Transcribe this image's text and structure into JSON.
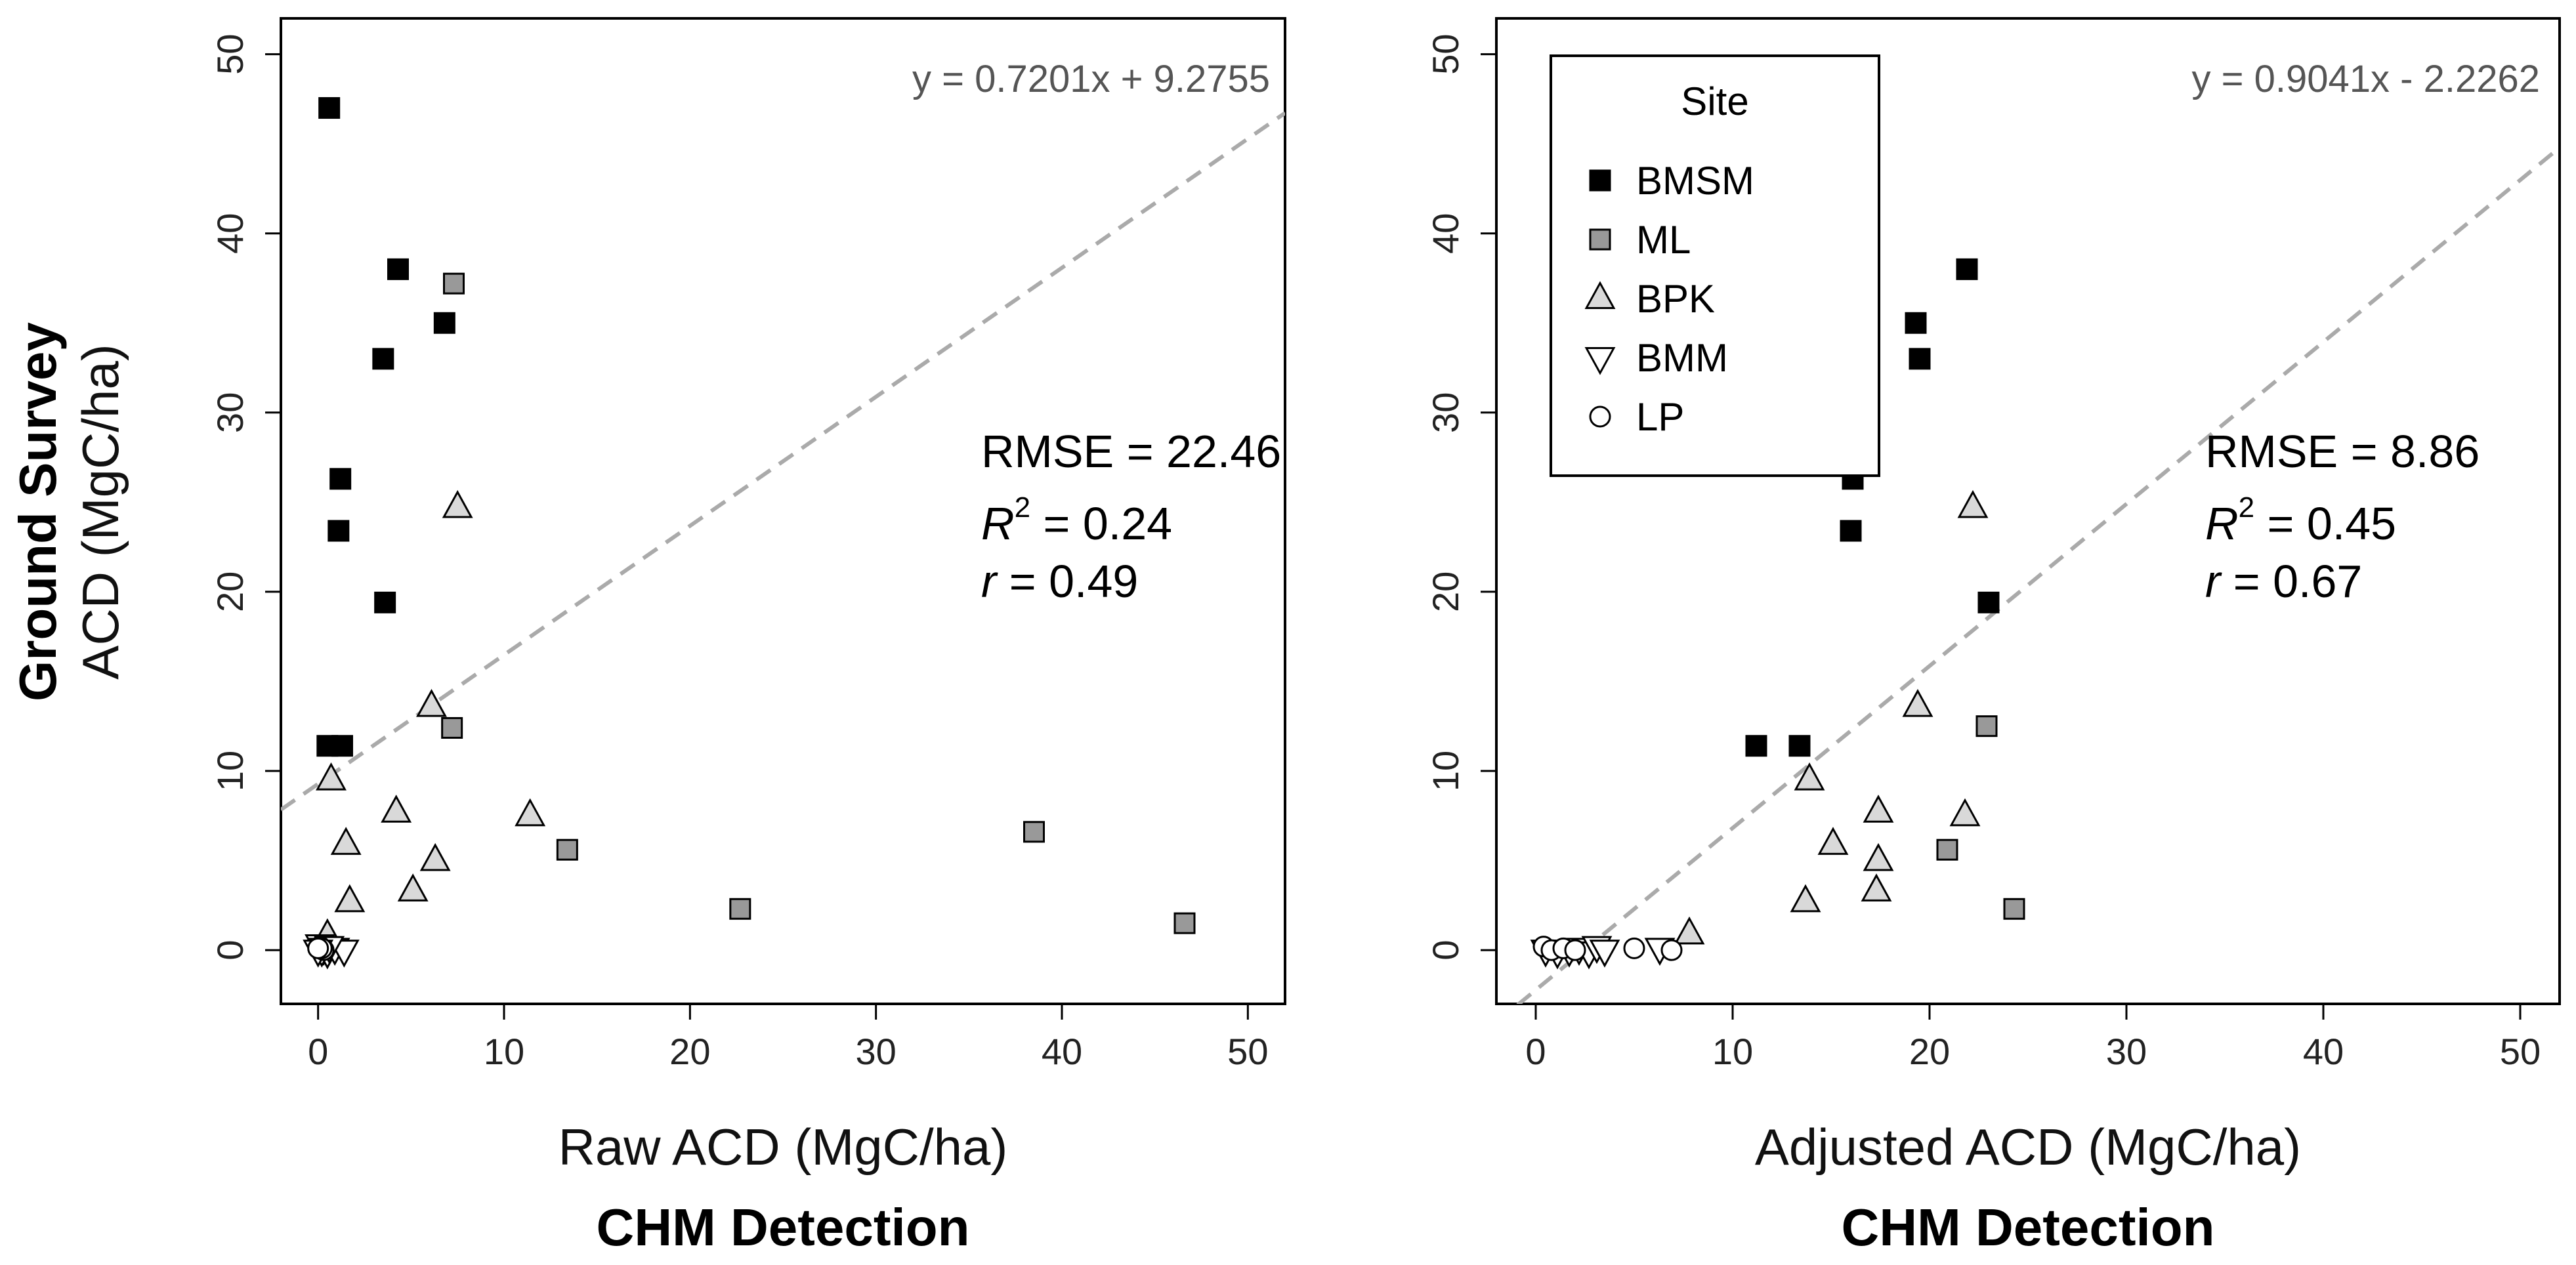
{
  "figure": {
    "y_title_bold": "Ground Survey",
    "y_title": "ACD (MgC/ha)"
  },
  "legend": {
    "title": "Site",
    "items": [
      {
        "label": "BMSM",
        "marker": "square",
        "fill": "#000000"
      },
      {
        "label": "ML",
        "marker": "square",
        "fill": "#999999"
      },
      {
        "label": "BPK",
        "marker": "triangle-up",
        "fill": "#d9d9d9"
      },
      {
        "label": "BMM",
        "marker": "triangle-down",
        "fill": "#ffffff"
      },
      {
        "label": "LP",
        "marker": "circle",
        "fill": "#ffffff"
      }
    ]
  },
  "colors": {
    "fit_line": "#aaaaaa",
    "BMSM": "#000000",
    "ML": "#999999",
    "BPK": "#d9d9d9",
    "BMM": "#ffffff",
    "LP": "#ffffff"
  },
  "chart_data": [
    {
      "type": "scatter",
      "xlabel": "Raw ACD (MgC/ha)",
      "xlabel_bold": "CHM Detection",
      "ylabel": "ACD (MgC/ha)",
      "xlim": [
        -2,
        52
      ],
      "ylim": [
        -3,
        52
      ],
      "xticks": [
        0,
        10,
        20,
        30,
        40,
        50
      ],
      "yticks": [
        0,
        10,
        20,
        30,
        40,
        50
      ],
      "equation": "y = 0.7201x + 9.2755",
      "fit": {
        "slope": 0.7201,
        "intercept": 9.2755
      },
      "stats": {
        "rmse_label": "RMSE",
        "rmse": "22.46",
        "r2_label": "R",
        "r2": "0.24",
        "r_label": "r",
        "r": "0.49"
      },
      "series": [
        {
          "name": "BMSM",
          "points": [
            [
              0.6,
              47
            ],
            [
              4.3,
              38
            ],
            [
              6.8,
              35
            ],
            [
              3.5,
              33
            ],
            [
              1.2,
              26.3
            ],
            [
              1.1,
              23.4
            ],
            [
              3.6,
              19.4
            ],
            [
              0.5,
              11.4
            ],
            [
              1.3,
              11.4
            ]
          ]
        },
        {
          "name": "ML",
          "points": [
            [
              7.3,
              37.2
            ],
            [
              7.2,
              12.4
            ],
            [
              13.4,
              5.6
            ],
            [
              38.5,
              6.6
            ],
            [
              22.7,
              2.3
            ],
            [
              46.6,
              1.5
            ]
          ]
        },
        {
          "name": "BPK",
          "points": [
            [
              7.5,
              24.7
            ],
            [
              6.1,
              13.6
            ],
            [
              0.7,
              9.5
            ],
            [
              4.2,
              7.7
            ],
            [
              11.4,
              7.5
            ],
            [
              1.5,
              5.9
            ],
            [
              6.3,
              5.0
            ],
            [
              5.1,
              3.3
            ],
            [
              1.7,
              2.7
            ],
            [
              0.5,
              0.8
            ]
          ]
        },
        {
          "name": "BMM",
          "points": [
            [
              0.1,
              0.3
            ],
            [
              0.3,
              0.1
            ],
            [
              0.5,
              -0.1
            ],
            [
              0.2,
              0.0
            ],
            [
              0.9,
              0.1
            ],
            [
              1.4,
              0.0
            ],
            [
              0.6,
              0.2
            ],
            [
              0.0,
              0.0
            ]
          ]
        },
        {
          "name": "LP",
          "points": [
            [
              0.1,
              0.2
            ],
            [
              0.3,
              0.0
            ],
            [
              0.2,
              0.1
            ],
            [
              0.0,
              0.1
            ]
          ]
        }
      ]
    },
    {
      "type": "scatter",
      "xlabel": "Adjusted ACD (MgC/ha)",
      "xlabel_bold": "CHM Detection",
      "ylabel": "ACD (MgC/ha)",
      "xlim": [
        -2,
        52
      ],
      "ylim": [
        -3,
        52
      ],
      "xticks": [
        0,
        10,
        20,
        30,
        40,
        50
      ],
      "yticks": [
        0,
        10,
        20,
        30,
        40,
        50
      ],
      "equation": "y = 0.9041x - 2.2262",
      "fit": {
        "slope": 0.9041,
        "intercept": -2.2262
      },
      "stats": {
        "rmse_label": "RMSE",
        "rmse": "8.86",
        "r2_label": "R",
        "r2": "0.45",
        "r_label": "r",
        "r": "0.67"
      },
      "series": [
        {
          "name": "BMSM",
          "points": [
            [
              21.9,
              38
            ],
            [
              19.3,
              35
            ],
            [
              19.5,
              33
            ],
            [
              16.1,
              26.3
            ],
            [
              16.0,
              23.4
            ],
            [
              23.0,
              19.4
            ],
            [
              11.2,
              11.4
            ],
            [
              13.4,
              11.4
            ]
          ]
        },
        {
          "name": "ML",
          "points": [
            [
              22.9,
              12.5
            ],
            [
              20.9,
              5.6
            ],
            [
              24.3,
              2.3
            ]
          ]
        },
        {
          "name": "BPK",
          "points": [
            [
              22.2,
              24.7
            ],
            [
              19.4,
              13.6
            ],
            [
              13.9,
              9.5
            ],
            [
              17.4,
              7.7
            ],
            [
              21.8,
              7.5
            ],
            [
              15.1,
              5.9
            ],
            [
              17.4,
              5.0
            ],
            [
              17.3,
              3.3
            ],
            [
              13.7,
              2.7
            ],
            [
              7.8,
              0.9
            ]
          ]
        },
        {
          "name": "BMM",
          "points": [
            [
              0.5,
              0.0
            ],
            [
              1.1,
              -0.1
            ],
            [
              1.7,
              0.0
            ],
            [
              2.2,
              0.1
            ],
            [
              2.7,
              -0.1
            ],
            [
              3.1,
              0.2
            ],
            [
              3.5,
              0.0
            ],
            [
              6.3,
              0.1
            ]
          ]
        },
        {
          "name": "LP",
          "points": [
            [
              0.4,
              0.2
            ],
            [
              0.8,
              0.0
            ],
            [
              1.4,
              0.1
            ],
            [
              2.0,
              0.0
            ],
            [
              5.0,
              0.1
            ],
            [
              6.9,
              0.0
            ]
          ]
        }
      ]
    }
  ]
}
